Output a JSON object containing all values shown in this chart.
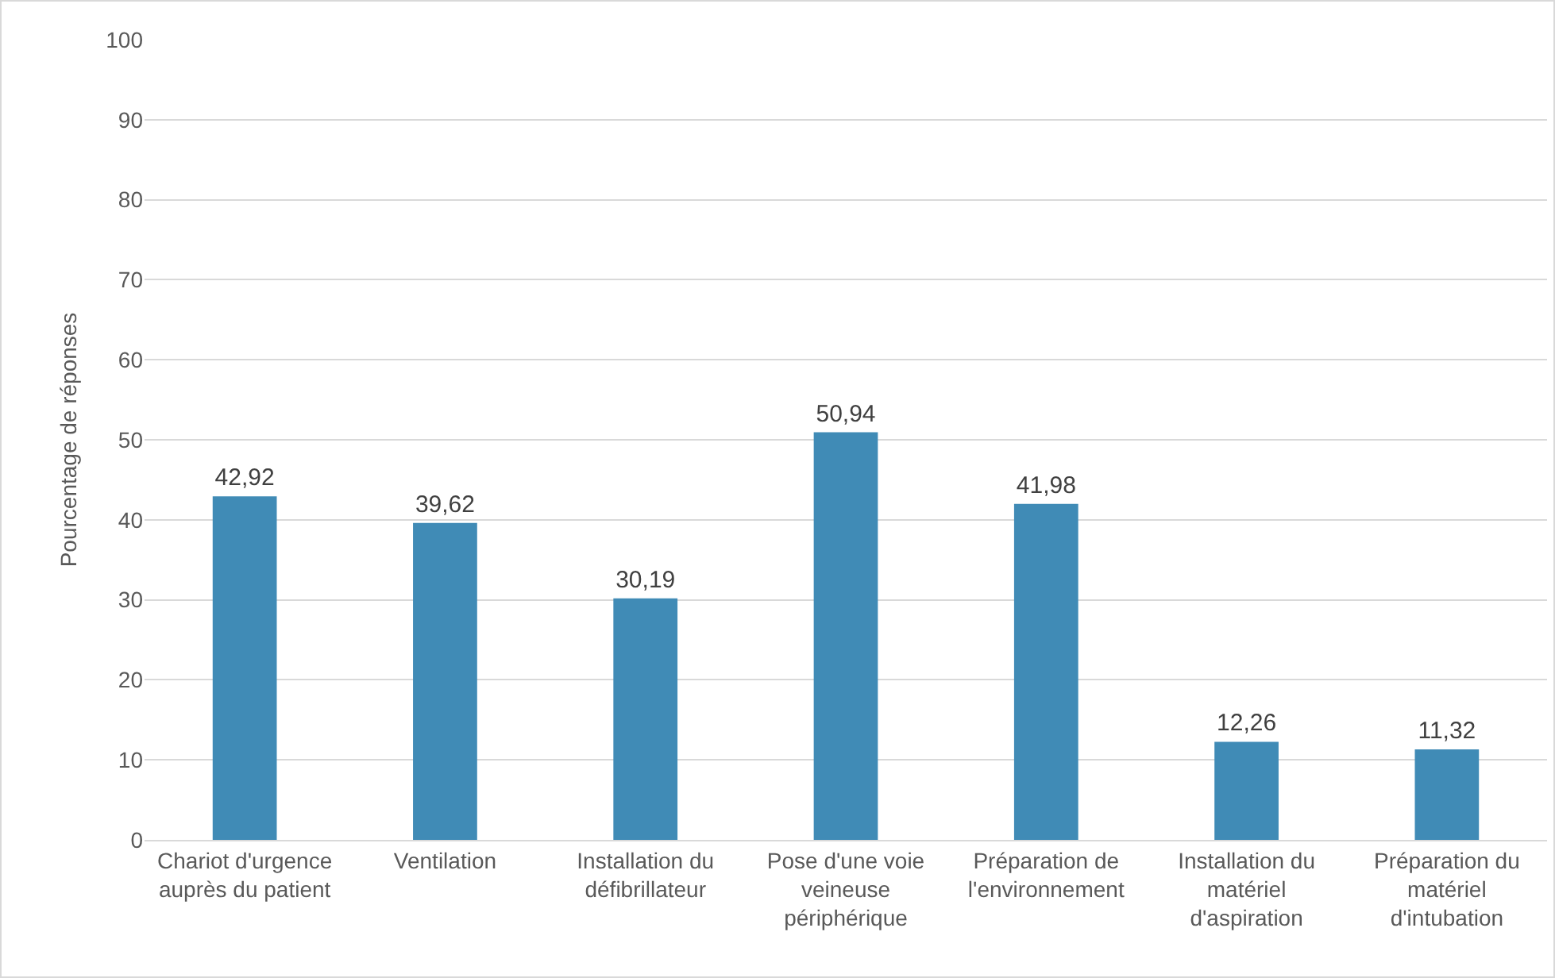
{
  "chart_data": {
    "type": "bar",
    "ylabel": "Pourcentage de réponses",
    "categories": [
      "Chariot d'urgence auprès du patient",
      "Ventilation",
      "Installation du défibrillateur",
      "Pose d'une voie veineuse périphérique",
      "Préparation de l'environnement",
      "Installation du matériel d'aspiration",
      "Préparation du matériel d'intubation"
    ],
    "values": [
      42.92,
      39.62,
      30.19,
      50.94,
      41.98,
      12.26,
      11.32
    ],
    "value_labels": [
      "42,92",
      "39,62",
      "30,19",
      "50,94",
      "41,98",
      "12,26",
      "11,32"
    ],
    "color": "#408bb6",
    "ylim": [
      0,
      100
    ],
    "yticks": [
      0,
      10,
      20,
      30,
      40,
      50,
      60,
      70,
      80,
      90,
      100
    ],
    "grid": "y"
  }
}
